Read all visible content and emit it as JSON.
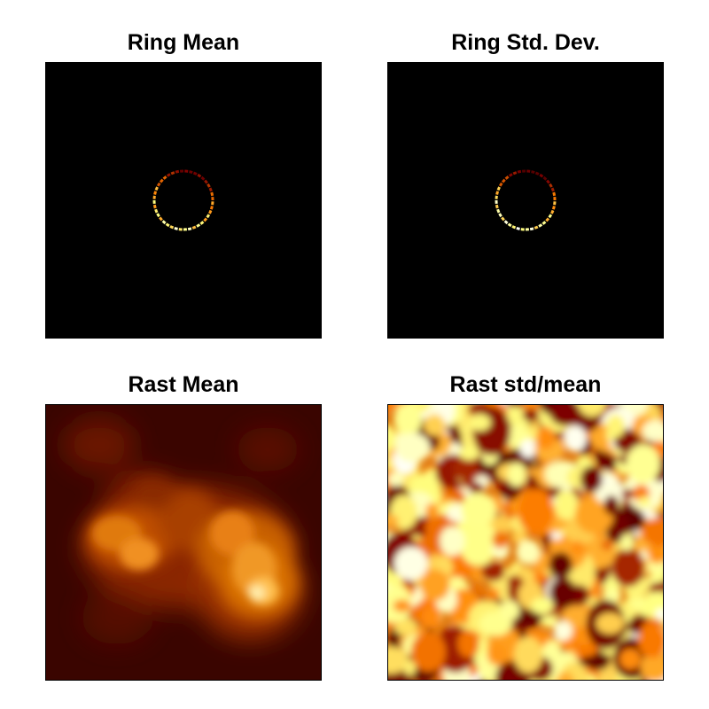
{
  "figure": {
    "colormap": "afmhot",
    "panels": [
      {
        "id": "ring-mean",
        "title": "Ring Mean"
      },
      {
        "id": "ring-std",
        "title": "Ring Std. Dev."
      },
      {
        "id": "rast-mean",
        "title": "Rast Mean"
      },
      {
        "id": "rast-std-over-mean",
        "title": "Rast std/mean"
      }
    ]
  },
  "chart_data": [
    {
      "type": "heatmap",
      "title": "Ring Mean",
      "colormap": "afmhot",
      "axes": "off",
      "feature": "thin ring, brightest along bottom and left, dim red at top",
      "intensity_by_angle_deg": {
        "0": 0.55,
        "45": 0.3,
        "90": 0.25,
        "135": 0.5,
        "180": 0.75,
        "225": 0.85,
        "270": 0.95,
        "315": 0.8
      }
    },
    {
      "type": "heatmap",
      "title": "Ring Std. Dev.",
      "colormap": "afmhot",
      "axes": "off",
      "feature": "thin ring, near-white along bottom-left, dark red at top",
      "intensity_by_angle_deg": {
        "0": 0.6,
        "45": 0.25,
        "90": 0.2,
        "135": 0.45,
        "180": 0.9,
        "225": 0.95,
        "270": 1.0,
        "315": 0.85
      }
    },
    {
      "type": "heatmap",
      "title": "Rast Mean",
      "colormap": "afmhot",
      "axes": "off",
      "feature": "smooth diffuse emission, brightest spot lower right, secondary blob left-center"
    },
    {
      "type": "heatmap",
      "title": "Rast std/mean",
      "colormap": "afmhot",
      "axes": "off",
      "feature": "high-frequency mottled pattern, mostly bright orange-yellow with dark red patches"
    }
  ]
}
